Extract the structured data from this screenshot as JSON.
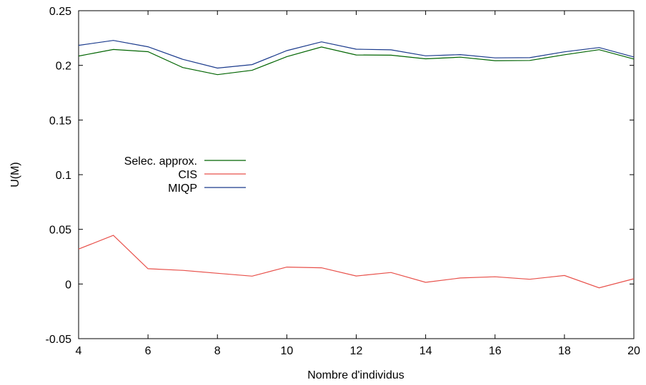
{
  "chart_data": {
    "type": "line",
    "title": "",
    "xlabel": "Nombre d'individus",
    "ylabel": "U(M)",
    "xlim": [
      4,
      20
    ],
    "ylim": [
      -0.05,
      0.25
    ],
    "xticks": [
      4,
      6,
      8,
      10,
      12,
      14,
      16,
      18,
      20
    ],
    "xtick_labels": [
      "4",
      "6",
      "8",
      "10",
      "12",
      "14",
      "16",
      "18",
      "20"
    ],
    "yticks": [
      -0.05,
      0,
      0.05,
      0.1,
      0.15,
      0.2,
      0.25
    ],
    "ytick_labels": [
      "-0.05",
      "0",
      "0.05",
      "0.1",
      "0.15",
      "0.2",
      "0.25"
    ],
    "grid": false,
    "legend_position": "center-left",
    "x": [
      4,
      5,
      6,
      7,
      8,
      9,
      10,
      11,
      12,
      13,
      14,
      15,
      16,
      17,
      18,
      19,
      20
    ],
    "series": [
      {
        "name": "Selec. approx.",
        "color": "#006400",
        "values": [
          0.2085,
          0.2145,
          0.2125,
          0.198,
          0.1915,
          0.1955,
          0.208,
          0.2168,
          0.2095,
          0.2093,
          0.206,
          0.2075,
          0.2043,
          0.2045,
          0.2097,
          0.2143,
          0.2058
        ]
      },
      {
        "name": "CIS",
        "color": "#e8504a",
        "values": [
          0.032,
          0.0445,
          0.014,
          0.0125,
          0.0098,
          0.0072,
          0.0155,
          0.0148,
          0.0073,
          0.0105,
          0.0015,
          0.0055,
          0.0066,
          0.0043,
          0.0078,
          -0.0035,
          0.0048
        ]
      },
      {
        "name": "MIQP",
        "color": "#1a3a8c",
        "values": [
          0.2183,
          0.2228,
          0.217,
          0.2055,
          0.1975,
          0.2007,
          0.2135,
          0.2215,
          0.2148,
          0.2142,
          0.2087,
          0.2098,
          0.2068,
          0.207,
          0.2124,
          0.2163,
          0.2077
        ]
      }
    ]
  }
}
